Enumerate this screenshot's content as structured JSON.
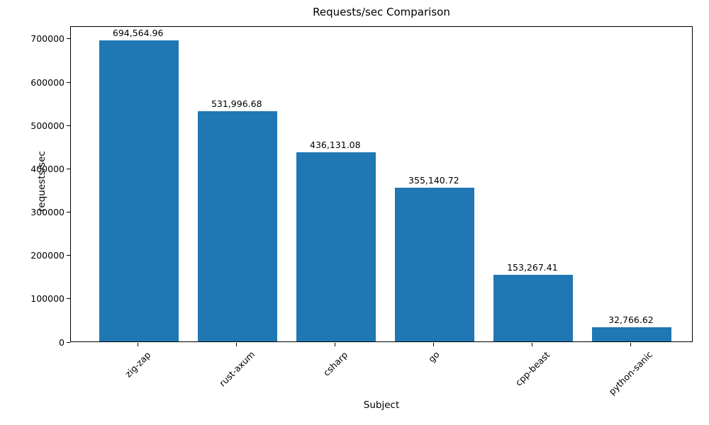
{
  "chart_data": {
    "type": "bar",
    "title": "Requests/sec Comparison",
    "xlabel": "Subject",
    "ylabel": "requests/sec",
    "categories": [
      "zig-zap",
      "rust-axum",
      "csharp",
      "go",
      "cpp-beast",
      "python-sanic"
    ],
    "values": [
      694564.96,
      531996.68,
      436131.08,
      355140.72,
      153267.41,
      32766.62
    ],
    "value_labels": [
      "694,564.96",
      "531,996.68",
      "436,131.08",
      "355,140.72",
      "153,267.41",
      "32,766.62"
    ],
    "yticks": [
      0,
      100000,
      200000,
      300000,
      400000,
      500000,
      600000,
      700000
    ],
    "ytick_labels": [
      "0",
      "100000",
      "200000",
      "300000",
      "400000",
      "500000",
      "600000",
      "700000"
    ],
    "ylim": [
      0,
      729293
    ],
    "x_tick_rotation": 45,
    "grid": false,
    "legend_position": "none",
    "bar_color": "#1f77b4",
    "text_color": "#000000",
    "background_color": "#ffffff"
  }
}
